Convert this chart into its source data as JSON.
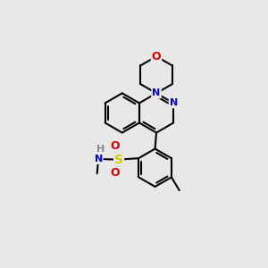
{
  "bg_color": "#e8e8e8",
  "bond_color": "#000000",
  "bond_width": 1.5,
  "atom_colors": {
    "N": "#0000cc",
    "O": "#dd0000",
    "S": "#cccc00",
    "H": "#888888",
    "C": "#000000"
  }
}
